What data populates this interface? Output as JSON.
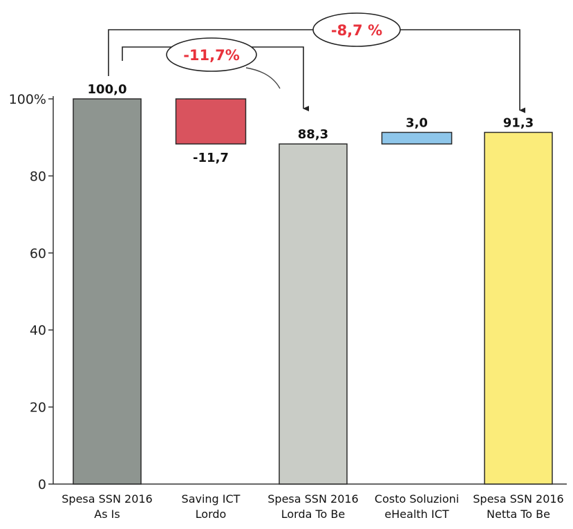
{
  "chart_data": {
    "type": "bar",
    "subtype": "waterfall",
    "categories": [
      [
        "Spesa SSN 2016",
        "As Is"
      ],
      [
        "Saving ICT",
        "Lordo"
      ],
      [
        "Spesa SSN 2016",
        "Lorda To Be"
      ],
      [
        "Costo Soluzioni",
        "eHealth ICT"
      ],
      [
        "Spesa SSN 2016",
        "Netta To Be"
      ]
    ],
    "bars": [
      {
        "bottom": 0,
        "top": 100.0,
        "label": "100,0",
        "label_pos": "above",
        "color": "#8e9590"
      },
      {
        "bottom": 88.3,
        "top": 100.0,
        "label": "-11,7",
        "label_pos": "below",
        "color": "#d9535e"
      },
      {
        "bottom": 0,
        "top": 88.3,
        "label": "88,3",
        "label_pos": "above",
        "color": "#c9ccc6"
      },
      {
        "bottom": 88.3,
        "top": 91.3,
        "label": "3,0",
        "label_pos": "above",
        "color": "#8ec6ea"
      },
      {
        "bottom": 0,
        "top": 91.3,
        "label": "91,3",
        "label_pos": "above",
        "color": "#fbec7a"
      }
    ],
    "ylim": [
      0,
      100
    ],
    "yticks": [
      0,
      20,
      40,
      60,
      80,
      100
    ],
    "ytick_labels": [
      "0",
      "20",
      "40",
      "60",
      "80",
      "100%"
    ],
    "callouts": [
      {
        "text": "-11,7%",
        "from_bar": 0,
        "to_bar": 2,
        "color": "#e8323c"
      },
      {
        "text": "-8,7 %",
        "from_bar": 0,
        "to_bar": 4,
        "color": "#e8323c"
      }
    ],
    "grid": false,
    "legend": "none"
  }
}
